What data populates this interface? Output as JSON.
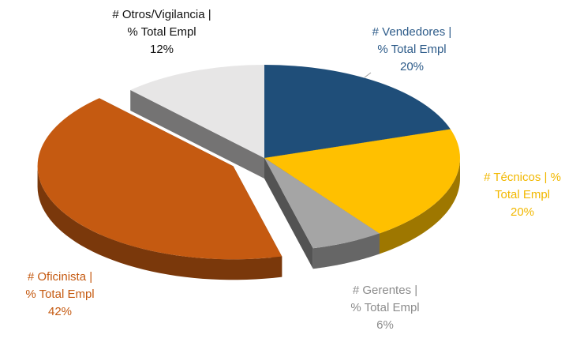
{
  "chart_data": {
    "type": "pie3d",
    "categories": [
      "# Vendedores |\n% Total Empl",
      "# Técnicos | %\nTotal Empl",
      "# Gerentes   |\n% Total Empl",
      "# Oficinista    |\n% Total Empl",
      "# Otros/Vigilancia |\n% Total Empl"
    ],
    "values": [
      20,
      20,
      6,
      42,
      12
    ],
    "value_labels": [
      "20%",
      "20%",
      "6%",
      "42%",
      "12%"
    ],
    "colors": [
      "#1f4e79",
      "#ffc000",
      "#a5a5a5",
      "#c55a11",
      "#e7e6e6"
    ],
    "label_colors": [
      "#2e5c8a",
      "#f2b800",
      "#8c8c8c",
      "#c55a11",
      "#111111"
    ],
    "exploded": [
      false,
      false,
      false,
      true,
      false
    ]
  }
}
